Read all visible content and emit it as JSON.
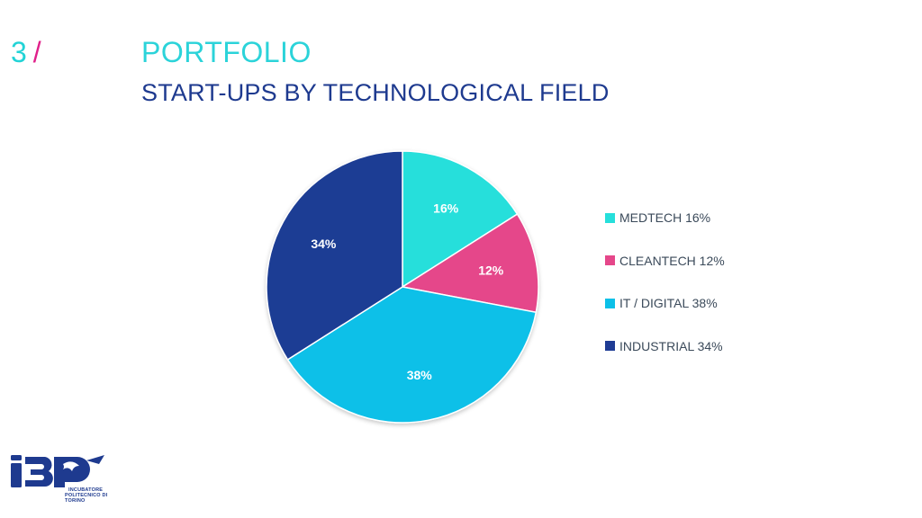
{
  "header": {
    "section_number": "3",
    "section_slash": "/",
    "title": "PORTFOLIO",
    "subtitle": "START-UPS BY TECHNOLOGICAL FIELD"
  },
  "colors": {
    "medtech": "#26dfdb",
    "cleantech": "#e5478a",
    "it_digital": "#0cc0e8",
    "industrial": "#1f3c94"
  },
  "chart_data": {
    "type": "pie",
    "start_angle_deg": 0,
    "direction": "clockwise",
    "slices": [
      {
        "label": "MEDTECH",
        "value": 16,
        "data_label": "16%",
        "legend": "MEDTECH 16%",
        "color": "#26dfdb"
      },
      {
        "label": "CLEANTECH",
        "value": 12,
        "data_label": "12%",
        "legend": "CLEANTECH 12%",
        "color": "#e5478a"
      },
      {
        "label": "IT / DIGITAL",
        "value": 38,
        "data_label": "38%",
        "legend": "IT / DIGITAL 38%",
        "color": "#0cc0e8"
      },
      {
        "label": "INDUSTRIAL",
        "value": 34,
        "data_label": "34%",
        "legend": "INDUSTRIAL 34%",
        "color": "#1f3c94"
      }
    ],
    "legend_position": "right"
  },
  "logo": {
    "mark": "I3P",
    "line1": "INCUBATORE",
    "line2": "POLITECNICO DI TORINO"
  }
}
